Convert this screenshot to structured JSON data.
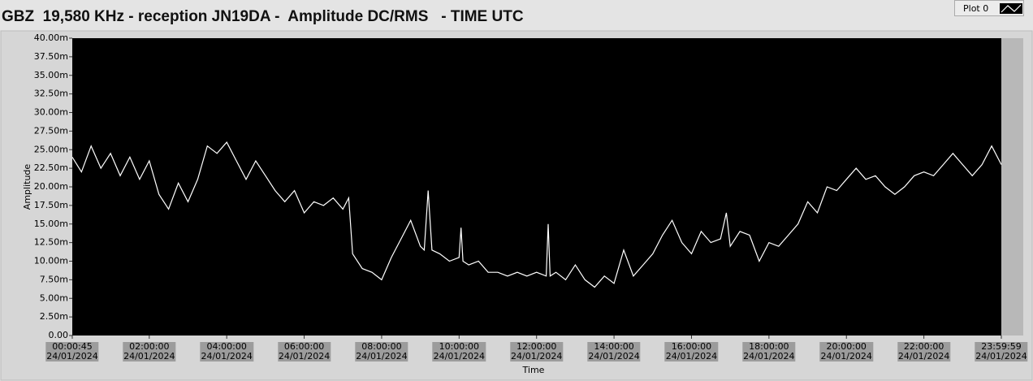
{
  "chart_data": {
    "type": "line",
    "title": "GBZ  19,580 KHz - reception JN19DA -  Amplitude DC/RMS   - TIME UTC",
    "x_label": "Time",
    "y_label": "Amplitude",
    "legend_position": "top-right",
    "x": [
      0.0125,
      0.25,
      0.5,
      0.75,
      1,
      1.25,
      1.5,
      1.75,
      2,
      2.25,
      2.5,
      2.75,
      3,
      3.25,
      3.5,
      3.75,
      4,
      4.25,
      4.5,
      4.75,
      5,
      5.25,
      5.5,
      5.75,
      6,
      6.25,
      6.5,
      6.75,
      7,
      7.15,
      7.25,
      7.5,
      7.75,
      8,
      8.25,
      8.5,
      8.75,
      9,
      9.1,
      9.2,
      9.3,
      9.5,
      9.75,
      10,
      10.05,
      10.1,
      10.25,
      10.5,
      10.75,
      11,
      11.25,
      11.5,
      11.75,
      12,
      12.25,
      12.3,
      12.35,
      12.5,
      12.75,
      13,
      13.25,
      13.5,
      13.75,
      14,
      14.25,
      14.5,
      14.75,
      15,
      15.25,
      15.5,
      15.75,
      16,
      16.25,
      16.5,
      16.75,
      16.9,
      17,
      17.25,
      17.5,
      17.75,
      18,
      18.25,
      18.5,
      18.75,
      19,
      19.25,
      19.5,
      19.75,
      20,
      20.25,
      20.5,
      20.75,
      21,
      21.25,
      21.5,
      21.75,
      22,
      22.25,
      22.5,
      22.75,
      23,
      23.25,
      23.5,
      23.75,
      23.9997
    ],
    "series": [
      {
        "name": "Plot 0",
        "color": "#ffffff",
        "values": [
          0.024,
          0.022,
          0.0255,
          0.0225,
          0.0245,
          0.0215,
          0.024,
          0.021,
          0.0235,
          0.019,
          0.017,
          0.0205,
          0.018,
          0.021,
          0.0255,
          0.0245,
          0.026,
          0.0235,
          0.021,
          0.0235,
          0.0215,
          0.0195,
          0.018,
          0.0195,
          0.0165,
          0.018,
          0.0175,
          0.0185,
          0.017,
          0.0185,
          0.011,
          0.009,
          0.0085,
          0.0075,
          0.0105,
          0.013,
          0.0155,
          0.012,
          0.0115,
          0.0195,
          0.0115,
          0.011,
          0.01,
          0.0105,
          0.0145,
          0.01,
          0.0095,
          0.01,
          0.0085,
          0.0085,
          0.008,
          0.0085,
          0.008,
          0.0085,
          0.008,
          0.015,
          0.008,
          0.0085,
          0.0075,
          0.0095,
          0.0075,
          0.0065,
          0.008,
          0.007,
          0.0115,
          0.008,
          0.0095,
          0.011,
          0.0135,
          0.0155,
          0.0125,
          0.011,
          0.014,
          0.0125,
          0.013,
          0.0165,
          0.012,
          0.014,
          0.0135,
          0.01,
          0.0125,
          0.012,
          0.0135,
          0.015,
          0.018,
          0.0165,
          0.02,
          0.0195,
          0.021,
          0.0225,
          0.021,
          0.0215,
          0.02,
          0.019,
          0.02,
          0.0215,
          0.022,
          0.0215,
          0.023,
          0.0245,
          0.023,
          0.0215,
          0.023,
          0.0255,
          0.023
        ]
      }
    ],
    "xlim": [
      0.0125,
      23.9997
    ],
    "xticks": [
      {
        "value": 0.0125,
        "label": "00:00:45\n24/01/2024"
      },
      {
        "value": 2,
        "label": "02:00:00\n24/01/2024"
      },
      {
        "value": 4,
        "label": "04:00:00\n24/01/2024"
      },
      {
        "value": 6,
        "label": "06:00:00\n24/01/2024"
      },
      {
        "value": 8,
        "label": "08:00:00\n24/01/2024"
      },
      {
        "value": 10,
        "label": "10:00:00\n24/01/2024"
      },
      {
        "value": 12,
        "label": "12:00:00\n24/01/2024"
      },
      {
        "value": 14,
        "label": "14:00:00\n24/01/2024"
      },
      {
        "value": 16,
        "label": "16:00:00\n24/01/2024"
      },
      {
        "value": 18,
        "label": "18:00:00\n24/01/2024"
      },
      {
        "value": 20,
        "label": "20:00:00\n24/01/2024"
      },
      {
        "value": 22,
        "label": "22:00:00\n24/01/2024"
      },
      {
        "value": 23.9997,
        "label": "23:59:59\n24/01/2024"
      }
    ],
    "ylim": [
      0,
      0.04
    ],
    "yticks": [
      {
        "value": 0,
        "label": "0.00"
      },
      {
        "value": 0.0025,
        "label": "2.50m"
      },
      {
        "value": 0.005,
        "label": "5.00m"
      },
      {
        "value": 0.0075,
        "label": "7.50m"
      },
      {
        "value": 0.01,
        "label": "10.00m"
      },
      {
        "value": 0.0125,
        "label": "12.50m"
      },
      {
        "value": 0.015,
        "label": "15.00m"
      },
      {
        "value": 0.0175,
        "label": "17.50m"
      },
      {
        "value": 0.02,
        "label": "20.00m"
      },
      {
        "value": 0.0225,
        "label": "22.50m"
      },
      {
        "value": 0.025,
        "label": "25.00m"
      },
      {
        "value": 0.0275,
        "label": "27.50m"
      },
      {
        "value": 0.03,
        "label": "30.00m"
      },
      {
        "value": 0.0325,
        "label": "32.50m"
      },
      {
        "value": 0.035,
        "label": "35.00m"
      },
      {
        "value": 0.0375,
        "label": "37.50m"
      },
      {
        "value": 0.04,
        "label": "40.00m"
      }
    ],
    "grid": false,
    "background": "#000000"
  }
}
